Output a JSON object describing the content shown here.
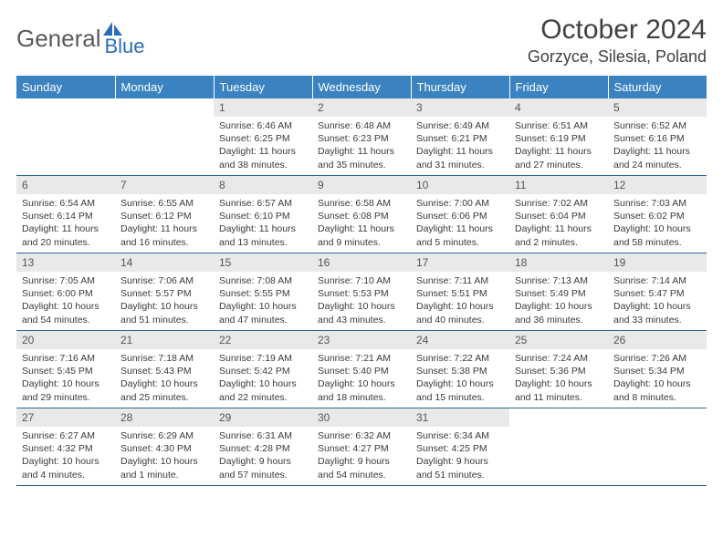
{
  "brand": {
    "word1": "General",
    "word2": "Blue"
  },
  "title": "October 2024",
  "location": "Gorzyce, Silesia, Poland",
  "colors": {
    "header_bg": "#3b83c0",
    "header_fg": "#ffffff",
    "daynum_bg": "#e9e9e9",
    "week_border": "#2a6699",
    "text": "#333333",
    "brand_gray": "#5a5a5a",
    "brand_blue": "#2a6db5"
  },
  "daysOfWeek": [
    "Sunday",
    "Monday",
    "Tuesday",
    "Wednesday",
    "Thursday",
    "Friday",
    "Saturday"
  ],
  "weeks": [
    [
      {
        "n": "",
        "sr": "",
        "ss": "",
        "dl": ""
      },
      {
        "n": "",
        "sr": "",
        "ss": "",
        "dl": ""
      },
      {
        "n": "1",
        "sr": "Sunrise: 6:46 AM",
        "ss": "Sunset: 6:25 PM",
        "dl": "Daylight: 11 hours and 38 minutes."
      },
      {
        "n": "2",
        "sr": "Sunrise: 6:48 AM",
        "ss": "Sunset: 6:23 PM",
        "dl": "Daylight: 11 hours and 35 minutes."
      },
      {
        "n": "3",
        "sr": "Sunrise: 6:49 AM",
        "ss": "Sunset: 6:21 PM",
        "dl": "Daylight: 11 hours and 31 minutes."
      },
      {
        "n": "4",
        "sr": "Sunrise: 6:51 AM",
        "ss": "Sunset: 6:19 PM",
        "dl": "Daylight: 11 hours and 27 minutes."
      },
      {
        "n": "5",
        "sr": "Sunrise: 6:52 AM",
        "ss": "Sunset: 6:16 PM",
        "dl": "Daylight: 11 hours and 24 minutes."
      }
    ],
    [
      {
        "n": "6",
        "sr": "Sunrise: 6:54 AM",
        "ss": "Sunset: 6:14 PM",
        "dl": "Daylight: 11 hours and 20 minutes."
      },
      {
        "n": "7",
        "sr": "Sunrise: 6:55 AM",
        "ss": "Sunset: 6:12 PM",
        "dl": "Daylight: 11 hours and 16 minutes."
      },
      {
        "n": "8",
        "sr": "Sunrise: 6:57 AM",
        "ss": "Sunset: 6:10 PM",
        "dl": "Daylight: 11 hours and 13 minutes."
      },
      {
        "n": "9",
        "sr": "Sunrise: 6:58 AM",
        "ss": "Sunset: 6:08 PM",
        "dl": "Daylight: 11 hours and 9 minutes."
      },
      {
        "n": "10",
        "sr": "Sunrise: 7:00 AM",
        "ss": "Sunset: 6:06 PM",
        "dl": "Daylight: 11 hours and 5 minutes."
      },
      {
        "n": "11",
        "sr": "Sunrise: 7:02 AM",
        "ss": "Sunset: 6:04 PM",
        "dl": "Daylight: 11 hours and 2 minutes."
      },
      {
        "n": "12",
        "sr": "Sunrise: 7:03 AM",
        "ss": "Sunset: 6:02 PM",
        "dl": "Daylight: 10 hours and 58 minutes."
      }
    ],
    [
      {
        "n": "13",
        "sr": "Sunrise: 7:05 AM",
        "ss": "Sunset: 6:00 PM",
        "dl": "Daylight: 10 hours and 54 minutes."
      },
      {
        "n": "14",
        "sr": "Sunrise: 7:06 AM",
        "ss": "Sunset: 5:57 PM",
        "dl": "Daylight: 10 hours and 51 minutes."
      },
      {
        "n": "15",
        "sr": "Sunrise: 7:08 AM",
        "ss": "Sunset: 5:55 PM",
        "dl": "Daylight: 10 hours and 47 minutes."
      },
      {
        "n": "16",
        "sr": "Sunrise: 7:10 AM",
        "ss": "Sunset: 5:53 PM",
        "dl": "Daylight: 10 hours and 43 minutes."
      },
      {
        "n": "17",
        "sr": "Sunrise: 7:11 AM",
        "ss": "Sunset: 5:51 PM",
        "dl": "Daylight: 10 hours and 40 minutes."
      },
      {
        "n": "18",
        "sr": "Sunrise: 7:13 AM",
        "ss": "Sunset: 5:49 PM",
        "dl": "Daylight: 10 hours and 36 minutes."
      },
      {
        "n": "19",
        "sr": "Sunrise: 7:14 AM",
        "ss": "Sunset: 5:47 PM",
        "dl": "Daylight: 10 hours and 33 minutes."
      }
    ],
    [
      {
        "n": "20",
        "sr": "Sunrise: 7:16 AM",
        "ss": "Sunset: 5:45 PM",
        "dl": "Daylight: 10 hours and 29 minutes."
      },
      {
        "n": "21",
        "sr": "Sunrise: 7:18 AM",
        "ss": "Sunset: 5:43 PM",
        "dl": "Daylight: 10 hours and 25 minutes."
      },
      {
        "n": "22",
        "sr": "Sunrise: 7:19 AM",
        "ss": "Sunset: 5:42 PM",
        "dl": "Daylight: 10 hours and 22 minutes."
      },
      {
        "n": "23",
        "sr": "Sunrise: 7:21 AM",
        "ss": "Sunset: 5:40 PM",
        "dl": "Daylight: 10 hours and 18 minutes."
      },
      {
        "n": "24",
        "sr": "Sunrise: 7:22 AM",
        "ss": "Sunset: 5:38 PM",
        "dl": "Daylight: 10 hours and 15 minutes."
      },
      {
        "n": "25",
        "sr": "Sunrise: 7:24 AM",
        "ss": "Sunset: 5:36 PM",
        "dl": "Daylight: 10 hours and 11 minutes."
      },
      {
        "n": "26",
        "sr": "Sunrise: 7:26 AM",
        "ss": "Sunset: 5:34 PM",
        "dl": "Daylight: 10 hours and 8 minutes."
      }
    ],
    [
      {
        "n": "27",
        "sr": "Sunrise: 6:27 AM",
        "ss": "Sunset: 4:32 PM",
        "dl": "Daylight: 10 hours and 4 minutes."
      },
      {
        "n": "28",
        "sr": "Sunrise: 6:29 AM",
        "ss": "Sunset: 4:30 PM",
        "dl": "Daylight: 10 hours and 1 minute."
      },
      {
        "n": "29",
        "sr": "Sunrise: 6:31 AM",
        "ss": "Sunset: 4:28 PM",
        "dl": "Daylight: 9 hours and 57 minutes."
      },
      {
        "n": "30",
        "sr": "Sunrise: 6:32 AM",
        "ss": "Sunset: 4:27 PM",
        "dl": "Daylight: 9 hours and 54 minutes."
      },
      {
        "n": "31",
        "sr": "Sunrise: 6:34 AM",
        "ss": "Sunset: 4:25 PM",
        "dl": "Daylight: 9 hours and 51 minutes."
      },
      {
        "n": "",
        "sr": "",
        "ss": "",
        "dl": ""
      },
      {
        "n": "",
        "sr": "",
        "ss": "",
        "dl": ""
      }
    ]
  ]
}
